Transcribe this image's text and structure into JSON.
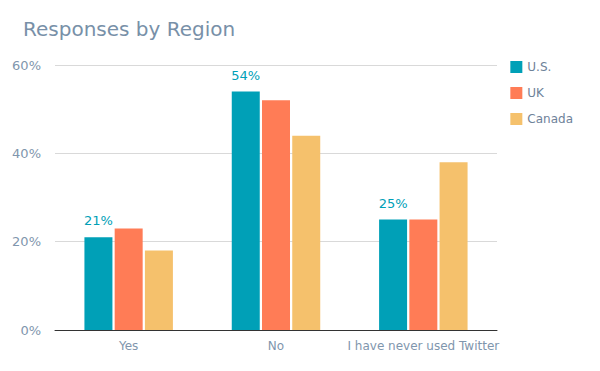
{
  "chart_data": {
    "type": "bar",
    "title": "Responses by Region",
    "categories": [
      "Yes",
      "No",
      "I have never used Twitter"
    ],
    "series": [
      {
        "name": "U.S.",
        "color": "#00a0b7",
        "values": [
          21,
          54,
          25
        ],
        "data_labels": true,
        "value_labels": [
          "21%",
          "54%",
          "25%"
        ]
      },
      {
        "name": "UK",
        "color": "#ff7c56",
        "values": [
          23,
          52,
          25
        ]
      },
      {
        "name": "Canada",
        "color": "#f5c16c",
        "values": [
          18,
          44,
          38
        ]
      }
    ],
    "ylim": [
      0,
      60
    ],
    "yticks": [
      {
        "value": 0,
        "label": "0%"
      },
      {
        "value": 20,
        "label": "20%"
      },
      {
        "value": 40,
        "label": "40%"
      },
      {
        "value": 60,
        "label": "60%"
      }
    ],
    "grid": true,
    "legend": "right"
  }
}
